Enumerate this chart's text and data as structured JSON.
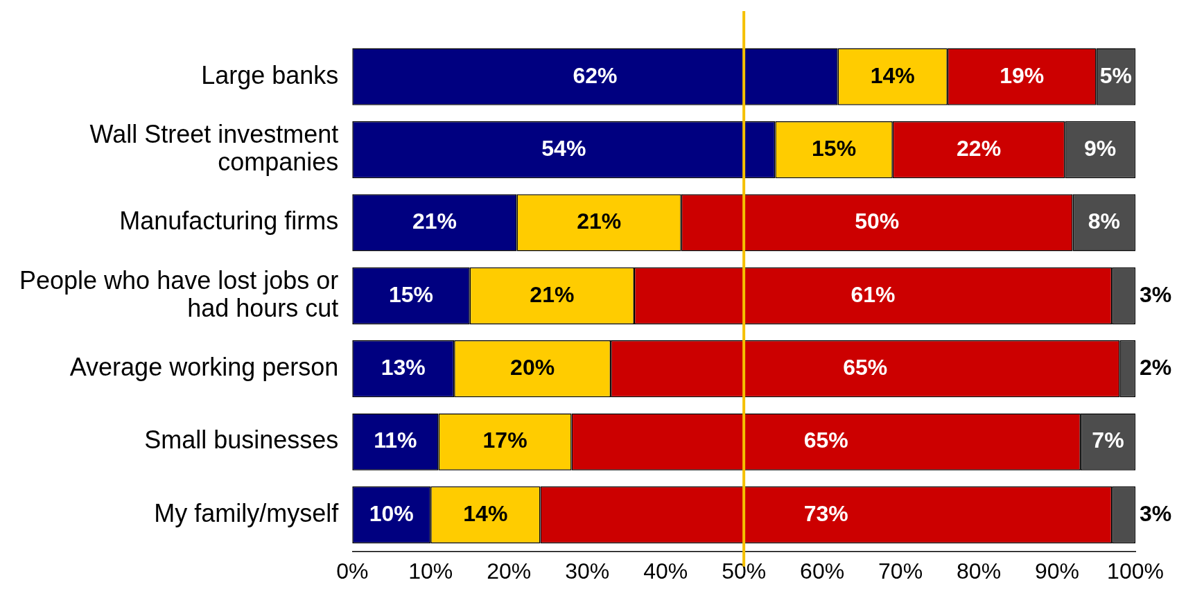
{
  "chart_data": {
    "type": "bar",
    "orientation": "horizontal",
    "stacked": true,
    "categories": [
      "Large banks",
      "Wall Street investment companies",
      "Manufacturing firms",
      "People who have lost jobs or had hours cut",
      "Average working person",
      "Small businesses",
      "My family/myself"
    ],
    "series": [
      {
        "color": "#000080",
        "values": [
          62,
          54,
          21,
          15,
          13,
          11,
          10
        ],
        "value_labels": [
          "62%",
          "54%",
          "21%",
          "15%",
          "13%",
          "11%",
          "10%"
        ]
      },
      {
        "color": "#ffcc00",
        "values": [
          14,
          15,
          21,
          21,
          20,
          17,
          14
        ],
        "value_labels": [
          "14%",
          "15%",
          "21%",
          "21%",
          "20%",
          "17%",
          "14%"
        ]
      },
      {
        "color": "#cc0000",
        "values": [
          19,
          22,
          50,
          61,
          65,
          65,
          73
        ],
        "value_labels": [
          "19%",
          "22%",
          "50%",
          "61%",
          "65%",
          "65%",
          "73%"
        ]
      },
      {
        "color": "#4d4d4d",
        "values": [
          5,
          9,
          8,
          3,
          2,
          7,
          3
        ],
        "value_labels": [
          "5%",
          "9%",
          "8%",
          "3%",
          "2%",
          "7%",
          "3%"
        ]
      }
    ],
    "xlim": [
      0,
      100
    ],
    "xticks": [
      {
        "value": 0,
        "label": "0%"
      },
      {
        "value": 10,
        "label": "10%"
      },
      {
        "value": 20,
        "label": "20%"
      },
      {
        "value": 30,
        "label": "30%"
      },
      {
        "value": 40,
        "label": "40%"
      },
      {
        "value": 50,
        "label": "50%"
      },
      {
        "value": 60,
        "label": "60%"
      },
      {
        "value": 70,
        "label": "70%"
      },
      {
        "value": 80,
        "label": "80%"
      },
      {
        "value": 90,
        "label": "90%"
      },
      {
        "value": 100,
        "label": "100%"
      }
    ],
    "ref_lines": [
      {
        "axis": "x",
        "value": 50,
        "color": "#f5c000"
      }
    ],
    "grid": false,
    "legend": false
  }
}
